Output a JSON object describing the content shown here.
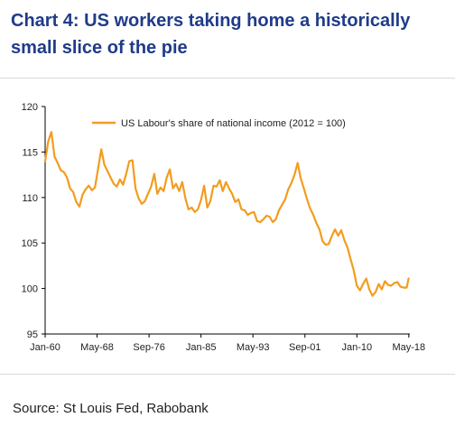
{
  "title": {
    "line1": "Chart 4: US workers taking home a historically",
    "line2": "small slice of the pie"
  },
  "source": "Source: St Louis Fed, Rabobank",
  "chart_data": {
    "type": "line",
    "title": "Chart 4: US workers taking home a historically small slice of the pie",
    "xlabel": "",
    "ylabel": "",
    "ylim": [
      95,
      120
    ],
    "xlim": [
      1960.0,
      2018.5
    ],
    "yticks": [
      95,
      100,
      105,
      110,
      115,
      120
    ],
    "xtick_labels": [
      "Jan-60",
      "May-68",
      "Sep-76",
      "Jan-85",
      "May-93",
      "Sep-01",
      "Jan-10",
      "May-18"
    ],
    "xtick_values": [
      1960.0,
      1968.33,
      1976.67,
      1985.0,
      1993.33,
      2001.67,
      2010.0,
      2018.33
    ],
    "legend_position": "top-left",
    "grid": false,
    "line_color": "#f39c1f",
    "series": [
      {
        "name": "US Labour's share of national income (2012 = 100)",
        "x": [
          1960.0,
          1960.5,
          1961.0,
          1961.5,
          1962.0,
          1962.5,
          1963.0,
          1963.5,
          1964.0,
          1964.5,
          1965.0,
          1965.5,
          1966.0,
          1966.5,
          1967.0,
          1967.5,
          1968.0,
          1968.5,
          1969.0,
          1969.5,
          1970.0,
          1970.5,
          1971.0,
          1971.5,
          1972.0,
          1972.5,
          1973.0,
          1973.5,
          1974.0,
          1974.5,
          1975.0,
          1975.5,
          1976.0,
          1976.5,
          1977.0,
          1977.5,
          1978.0,
          1978.5,
          1979.0,
          1979.5,
          1980.0,
          1980.5,
          1981.0,
          1981.5,
          1982.0,
          1982.5,
          1983.0,
          1983.5,
          1984.0,
          1984.5,
          1985.0,
          1985.5,
          1986.0,
          1986.5,
          1987.0,
          1987.5,
          1988.0,
          1988.5,
          1989.0,
          1989.5,
          1990.0,
          1990.5,
          1991.0,
          1991.5,
          1992.0,
          1992.5,
          1993.0,
          1993.5,
          1994.0,
          1994.5,
          1995.0,
          1995.5,
          1996.0,
          1996.5,
          1997.0,
          1997.5,
          1998.0,
          1998.5,
          1999.0,
          1999.5,
          2000.0,
          2000.5,
          2001.0,
          2001.5,
          2002.0,
          2002.5,
          2003.0,
          2003.5,
          2004.0,
          2004.5,
          2005.0,
          2005.5,
          2006.0,
          2006.5,
          2007.0,
          2007.5,
          2008.0,
          2008.5,
          2009.0,
          2009.5,
          2010.0,
          2010.5,
          2011.0,
          2011.5,
          2012.0,
          2012.5,
          2013.0,
          2013.5,
          2014.0,
          2014.5,
          2015.0,
          2015.5,
          2016.0,
          2016.5,
          2017.0,
          2017.5,
          2018.0,
          2018.3
        ],
        "y": [
          114.0,
          116.2,
          117.2,
          114.5,
          113.8,
          113.0,
          112.8,
          112.2,
          111.0,
          110.6,
          109.5,
          109.0,
          110.3,
          110.9,
          111.3,
          110.8,
          111.1,
          113.2,
          115.3,
          113.6,
          112.9,
          112.2,
          111.5,
          111.2,
          112.0,
          111.4,
          112.6,
          114.0,
          114.1,
          111.0,
          109.9,
          109.3,
          109.6,
          110.4,
          111.2,
          112.6,
          110.4,
          111.1,
          110.7,
          112.2,
          113.1,
          111.0,
          111.5,
          110.7,
          111.7,
          109.9,
          108.7,
          108.9,
          108.4,
          108.7,
          109.7,
          111.3,
          108.9,
          109.6,
          111.3,
          111.2,
          111.9,
          110.7,
          111.7,
          111.0,
          110.4,
          109.5,
          109.8,
          108.7,
          108.6,
          108.1,
          108.3,
          108.4,
          107.4,
          107.3,
          107.6,
          108.0,
          107.9,
          107.3,
          107.6,
          108.6,
          109.2,
          109.8,
          110.9,
          111.6,
          112.5,
          113.8,
          112.1,
          111.0,
          109.8,
          108.8,
          108.1,
          107.2,
          106.5,
          105.2,
          104.8,
          104.9,
          105.8,
          106.5,
          105.8,
          106.4,
          105.3,
          104.5,
          103.2,
          102.0,
          100.3,
          99.8,
          100.5,
          101.1,
          99.9,
          99.2,
          99.6,
          100.5,
          99.9,
          100.8,
          100.4,
          100.3,
          100.6,
          100.7,
          100.2,
          100.1,
          100.1,
          101.1
        ]
      }
    ]
  }
}
